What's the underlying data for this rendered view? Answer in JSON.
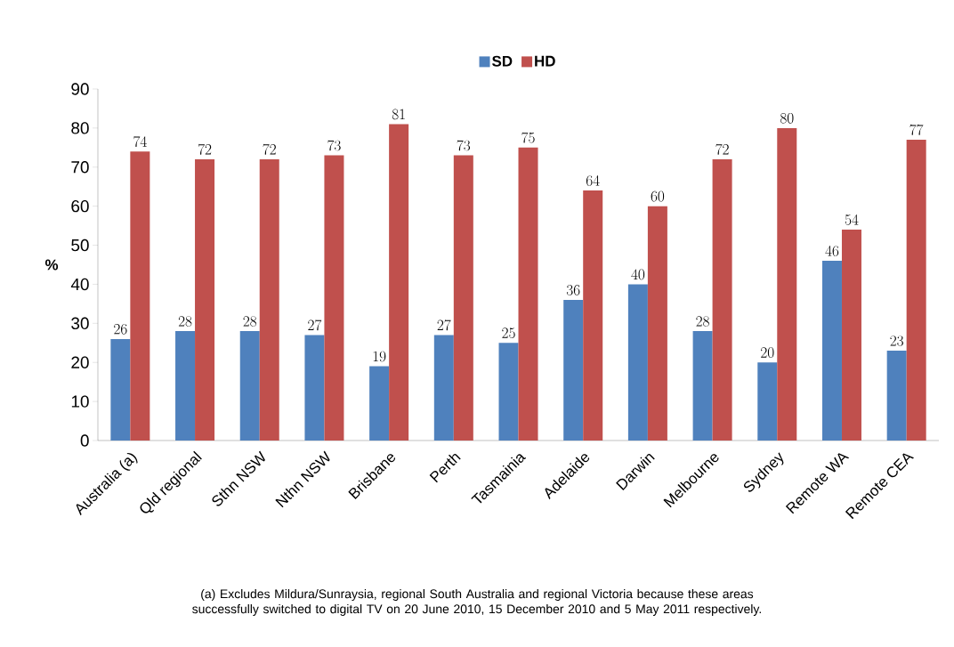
{
  "chart_data": {
    "type": "bar",
    "categories": [
      "Australia (a)",
      "Qld regional",
      "Sthn NSW",
      "Nthn NSW",
      "Brisbane",
      "Perth",
      "Tasmainia",
      "Adelaide",
      "Darwin",
      "Melbourne",
      "Sydney",
      "Remote WA",
      "Remote CEA"
    ],
    "series": [
      {
        "name": "SD",
        "color": "#4f81bd",
        "values": [
          26,
          28,
          28,
          27,
          19,
          27,
          25,
          36,
          40,
          28,
          20,
          46,
          23
        ]
      },
      {
        "name": "HD",
        "color": "#c0504d",
        "values": [
          74,
          72,
          72,
          73,
          81,
          73,
          75,
          64,
          60,
          72,
          80,
          54,
          77
        ]
      }
    ],
    "ylabel": "%",
    "ylim": [
      0,
      90
    ],
    "yticks": [
      0,
      10,
      20,
      30,
      40,
      50,
      60,
      70,
      80,
      90
    ],
    "legend": "top",
    "data_labels": true,
    "annotations": [
      "(a) Excludes Mildura/Sunraysia, regional South Australia and regional Victoria because these areas successfully switched to digital TV on 20 June 2010, 15 December 2010 and 5 May 2011 respectively."
    ]
  }
}
